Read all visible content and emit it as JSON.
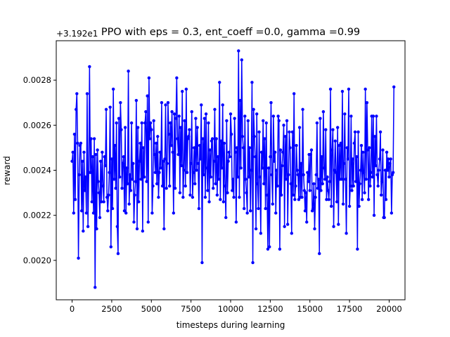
{
  "chart_data": {
    "type": "line",
    "title": "PPO with eps = 0.3, ent_coeff =0.0, gamma =0.99",
    "xlabel": "timesteps during learning",
    "ylabel": "reward",
    "offset_label": "+3.192e1",
    "xlim": [
      -1000,
      21000
    ],
    "ylim": [
      0.001825,
      0.002975
    ],
    "xticks": [
      0,
      2500,
      5000,
      7500,
      10000,
      12500,
      15000,
      17500,
      20000
    ],
    "xtick_labels": [
      "0",
      "2500",
      "5000",
      "7500",
      "10000",
      "12500",
      "15000",
      "17500",
      "20000"
    ],
    "yticks": [
      0.002,
      0.0022,
      0.0024,
      0.0026,
      0.0028
    ],
    "ytick_labels": [
      "0.0020",
      "0.0022",
      "0.0024",
      "0.0026",
      "0.0028"
    ],
    "grid": false,
    "series": [
      {
        "color": "#0000ff",
        "marker": "circle",
        "x_start": 0,
        "x_step": 50,
        "values": [
          0.00244,
          0.00248,
          0.00221,
          0.00256,
          0.00227,
          0.00267,
          0.00274,
          0.00252,
          0.00201,
          0.00238,
          0.00251,
          0.00252,
          0.00222,
          0.00244,
          0.00213,
          0.00248,
          0.00231,
          0.00237,
          0.00221,
          0.00274,
          0.00215,
          0.00239,
          0.00286,
          0.00239,
          0.00254,
          0.00226,
          0.00246,
          0.00221,
          0.00254,
          0.00188,
          0.00247,
          0.00214,
          0.00249,
          0.00235,
          0.0023,
          0.00219,
          0.00244,
          0.00226,
          0.00248,
          0.00233,
          0.00226,
          0.00246,
          0.00242,
          0.00267,
          0.00228,
          0.00222,
          0.00229,
          0.00239,
          0.00268,
          0.00206,
          0.00245,
          0.00223,
          0.00276,
          0.00236,
          0.00251,
          0.00232,
          0.00261,
          0.00215,
          0.00203,
          0.00263,
          0.00237,
          0.0027,
          0.00258,
          0.00232,
          0.00243,
          0.00246,
          0.00222,
          0.00259,
          0.00221,
          0.00241,
          0.00234,
          0.00284,
          0.00225,
          0.00238,
          0.00231,
          0.00261,
          0.00236,
          0.00243,
          0.00217,
          0.00229,
          0.00235,
          0.00271,
          0.00214,
          0.00259,
          0.00226,
          0.00244,
          0.00252,
          0.00236,
          0.00261,
          0.00213,
          0.0025,
          0.00237,
          0.00261,
          0.00266,
          0.00235,
          0.00273,
          0.00217,
          0.00281,
          0.00254,
          0.00261,
          0.00258,
          0.00221,
          0.00233,
          0.00262,
          0.00247,
          0.00239,
          0.00252,
          0.00234,
          0.00255,
          0.00228,
          0.00239,
          0.00248,
          0.00241,
          0.0027,
          0.00233,
          0.00244,
          0.00214,
          0.00245,
          0.00269,
          0.00232,
          0.00243,
          0.0027,
          0.00256,
          0.00233,
          0.00261,
          0.00251,
          0.00266,
          0.00248,
          0.00221,
          0.00265,
          0.00232,
          0.00263,
          0.00281,
          0.00254,
          0.00247,
          0.00264,
          0.0023,
          0.00259,
          0.00242,
          0.00275,
          0.00228,
          0.0024,
          0.00262,
          0.00233,
          0.00276,
          0.00239,
          0.00254,
          0.00255,
          0.00258,
          0.00229,
          0.00243,
          0.00266,
          0.00228,
          0.00239,
          0.0025,
          0.00234,
          0.00263,
          0.0024,
          0.00259,
          0.00243,
          0.00223,
          0.00251,
          0.00245,
          0.00269,
          0.00199,
          0.00254,
          0.00238,
          0.00263,
          0.00228,
          0.00265,
          0.00241,
          0.00231,
          0.00261,
          0.00226,
          0.00249,
          0.00237,
          0.00253,
          0.00254,
          0.00232,
          0.00244,
          0.00267,
          0.00234,
          0.00254,
          0.00229,
          0.00246,
          0.00236,
          0.00279,
          0.00227,
          0.00253,
          0.00241,
          0.00269,
          0.00226,
          0.00252,
          0.00233,
          0.00219,
          0.00262,
          0.0023,
          0.00244,
          0.00248,
          0.00246,
          0.00265,
          0.00256,
          0.00231,
          0.00236,
          0.00228,
          0.00263,
          0.00248,
          0.00217,
          0.0025,
          0.00237,
          0.00293,
          0.00228,
          0.00271,
          0.00241,
          0.00289,
          0.00255,
          0.0025,
          0.00223,
          0.00264,
          0.00236,
          0.0023,
          0.00221,
          0.00262,
          0.00237,
          0.0025,
          0.00222,
          0.0024,
          0.00279,
          0.00199,
          0.00267,
          0.00255,
          0.00246,
          0.00214,
          0.00265,
          0.00234,
          0.00223,
          0.00257,
          0.00237,
          0.00212,
          0.00248,
          0.00241,
          0.00262,
          0.00234,
          0.00254,
          0.00223,
          0.00261,
          0.00229,
          0.00205,
          0.00241,
          0.00206,
          0.00246,
          0.0027,
          0.00238,
          0.00225,
          0.00264,
          0.00244,
          0.00248,
          0.00221,
          0.0024,
          0.00233,
          0.00264,
          0.00262,
          0.00205,
          0.00249,
          0.00229,
          0.00242,
          0.00248,
          0.0026,
          0.00215,
          0.00255,
          0.00236,
          0.00262,
          0.00216,
          0.00238,
          0.00257,
          0.0025,
          0.00234,
          0.00212,
          0.00257,
          0.00229,
          0.00274,
          0.00227,
          0.00233,
          0.00251,
          0.0024,
          0.00238,
          0.00227,
          0.00259,
          0.00228,
          0.00243,
          0.00228,
          0.00267,
          0.00238,
          0.00231,
          0.00222,
          0.0023,
          0.00217,
          0.00239,
          0.00235,
          0.00247,
          0.00231,
          0.00247,
          0.00249,
          0.00222,
          0.00223,
          0.00234,
          0.00214,
          0.00228,
          0.00238,
          0.00261,
          0.00232,
          0.00236,
          0.00203,
          0.00263,
          0.00231,
          0.00246,
          0.00234,
          0.00266,
          0.00241,
          0.00236,
          0.00258,
          0.00227,
          0.00237,
          0.00231,
          0.00227,
          0.00235,
          0.00276,
          0.00224,
          0.00249,
          0.00258,
          0.00215,
          0.0024,
          0.00253,
          0.00239,
          0.00226,
          0.00259,
          0.00216,
          0.00251,
          0.00236,
          0.00252,
          0.00236,
          0.00275,
          0.00225,
          0.00243,
          0.00265,
          0.00236,
          0.00212,
          0.0025,
          0.00245,
          0.00276,
          0.00224,
          0.00233,
          0.00264,
          0.00231,
          0.00245,
          0.00233,
          0.00252,
          0.00257,
          0.00235,
          0.00246,
          0.00205,
          0.00257,
          0.00224,
          0.00234,
          0.0024,
          0.00251,
          0.00227,
          0.00248,
          0.00239,
          0.0023,
          0.00276,
          0.00236,
          0.0027,
          0.00249,
          0.00227,
          0.0025,
          0.00233,
          0.00239,
          0.00264,
          0.00237,
          0.00264,
          0.0022,
          0.00255,
          0.00242,
          0.00264,
          0.00238,
          0.00233,
          0.0024,
          0.00245,
          0.00257,
          0.00229,
          0.00235,
          0.00249,
          0.00219,
          0.00219,
          0.0024,
          0.00227,
          0.00248,
          0.0024,
          0.00245,
          0.00237,
          0.00243,
          0.00245,
          0.00221,
          0.00238,
          0.00239,
          0.00277
        ]
      }
    ]
  }
}
